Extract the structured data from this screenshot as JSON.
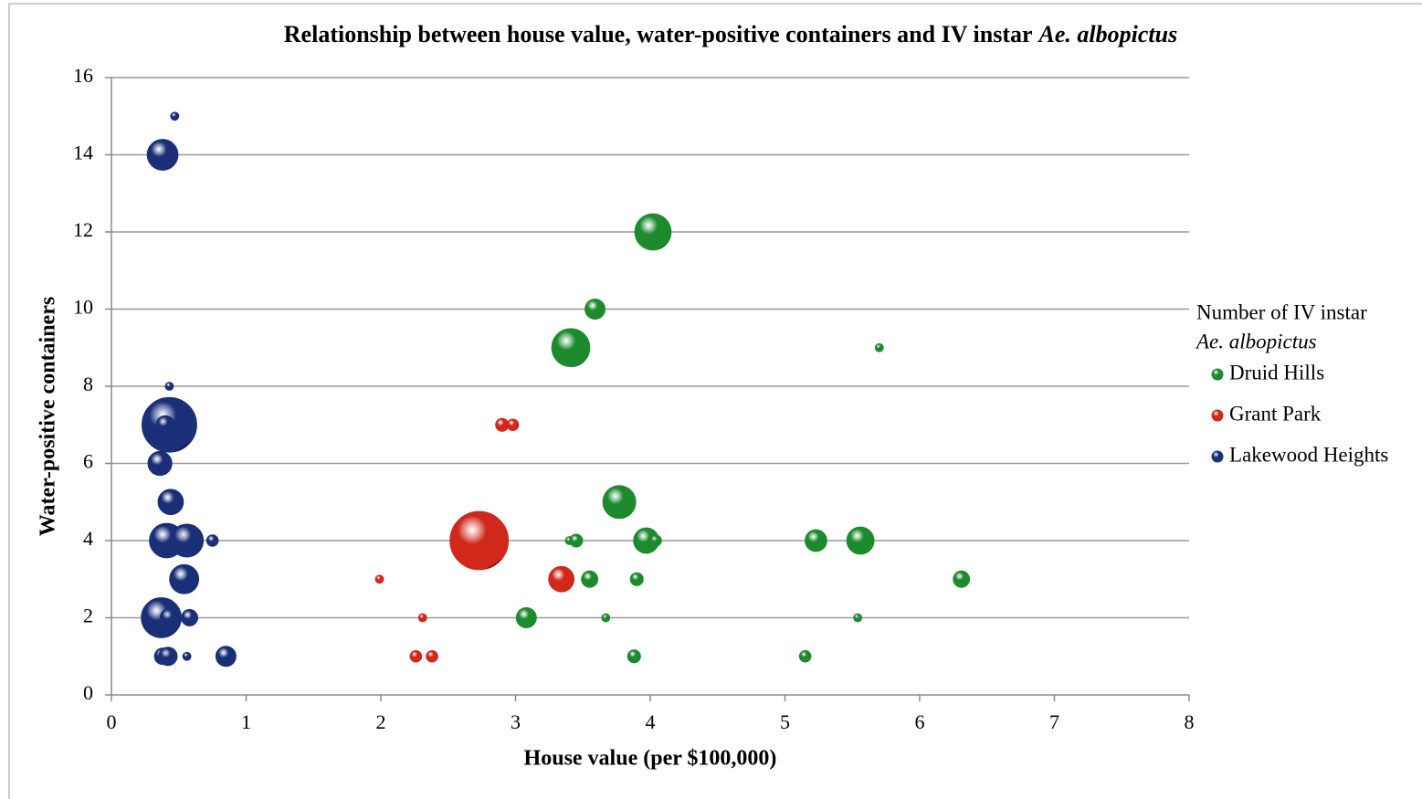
{
  "chart_data": {
    "type": "bubble",
    "title": [
      "Relationship between house value, water-positive containers and IV instar",
      "Ae. albopictus"
    ],
    "xlabel": "House value (per $100,000)",
    "ylabel": "Water-positive containers",
    "legend_title": [
      "Number of IV instar",
      "Ae. albopictus"
    ],
    "legend": "right",
    "grid": true,
    "xlim": [
      0,
      8
    ],
    "xticks": [
      0,
      1,
      2,
      3,
      4,
      5,
      6,
      7,
      8
    ],
    "ylim": [
      0,
      16
    ],
    "yticks": [
      0,
      2,
      4,
      6,
      8,
      10,
      12,
      14,
      16
    ],
    "series": [
      {
        "name": "Druid Hills",
        "color": "#1e8a2e",
        "x": [
          4.02,
          3.59,
          3.41,
          5.7,
          3.77,
          3.4,
          3.45,
          3.97,
          4.04,
          5.23,
          5.56,
          3.55,
          3.9,
          6.31,
          3.08,
          3.67,
          5.54,
          3.88,
          5.15
        ],
        "y": [
          12,
          10,
          9,
          9,
          5,
          4,
          4,
          4,
          4,
          4,
          4,
          3,
          3,
          3,
          2,
          2,
          2,
          1,
          1
        ],
        "sizes": [
          39,
          12,
          43,
          2,
          32,
          2,
          5,
          19,
          4,
          14,
          22,
          8,
          5,
          8,
          12,
          2,
          2,
          5,
          4
        ]
      },
      {
        "name": "Grant Park",
        "color": "#d0281a",
        "x": [
          2.9,
          2.98,
          1.99,
          2.73,
          3.34,
          2.31,
          2.26,
          2.38
        ],
        "y": [
          7,
          7,
          3,
          4,
          3,
          2,
          1,
          1
        ],
        "sizes": [
          5,
          4,
          2,
          100,
          19,
          2,
          4,
          4
        ]
      },
      {
        "name": "Lakewood Heights",
        "color": "#1a2f78",
        "x": [
          0.47,
          0.38,
          0.43,
          0.43,
          0.4,
          0.36,
          0.44,
          0.41,
          0.56,
          0.75,
          0.54,
          0.37,
          0.43,
          0.58,
          0.38,
          0.42,
          0.56,
          0.85
        ],
        "y": [
          15,
          14,
          8,
          7,
          7,
          6,
          5,
          4,
          4,
          4,
          3,
          2,
          2,
          2,
          1,
          1,
          1,
          1
        ],
        "sizes": [
          2,
          28,
          2,
          88,
          10,
          17,
          19,
          35,
          32,
          4,
          25,
          47,
          10,
          8,
          8,
          10,
          2,
          12
        ]
      }
    ]
  }
}
